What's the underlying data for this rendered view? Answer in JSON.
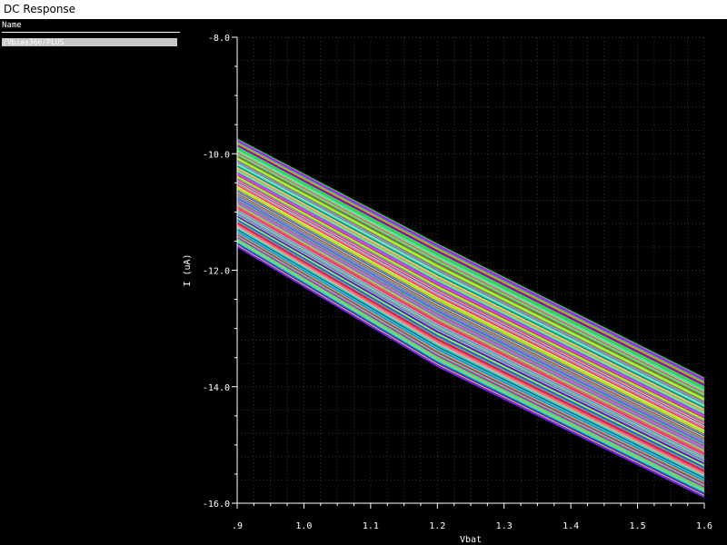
{
  "window": {
    "title": "DC Response"
  },
  "legend": {
    "header": "Name",
    "items": [
      {
        "label": "/Vbias366/PLUS"
      }
    ]
  },
  "chart_data": {
    "type": "line",
    "title": "",
    "xlabel": "Vbat",
    "ylabel": "I (uA)",
    "xlim": [
      0.9,
      1.6
    ],
    "ylim": [
      -16.0,
      -8.0
    ],
    "x_ticks": [
      ".9",
      "1.0",
      "1.1",
      "1.2",
      "1.3",
      "1.4",
      "1.5",
      "1.6"
    ],
    "y_ticks": [
      "-8.0",
      "-10.0",
      "-12.0",
      "-14.0",
      "-16.0"
    ],
    "grid": true,
    "series_count": 120,
    "series_summary": {
      "x": [
        0.9,
        1.2,
        1.6
      ],
      "upper_envelope_y": [
        -9.75,
        -11.55,
        -13.85
      ],
      "lower_envelope_y": [
        -11.6,
        -13.65,
        -15.9
      ]
    },
    "colors": {
      "background": "#000000",
      "grid": "#3a3a3a",
      "axis": "#ffffff"
    }
  }
}
